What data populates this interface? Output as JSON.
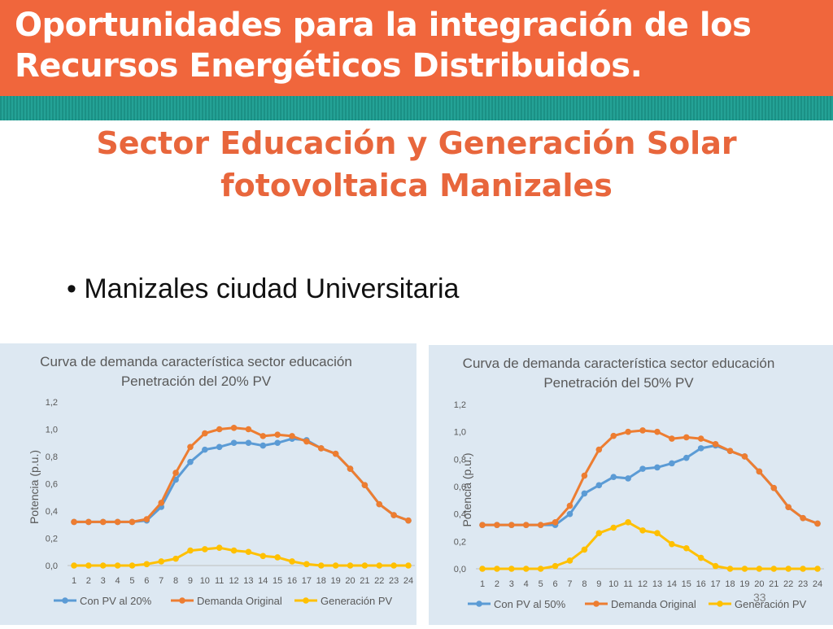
{
  "header": {
    "title": "Oportunidades para la integración de los Recursos Energéticos Distribuidos."
  },
  "subtitle": "Sector Educación y Generación Solar fotovoltaica Manizales",
  "bullet": "• Manizales ciudad Universitaria",
  "page_number": "33",
  "colors": {
    "header": "#f0663c",
    "stripe": "#1d9a8e",
    "subtitle": "#e8663c",
    "blue": "#5b9bd5",
    "orange": "#ed7d31",
    "yellow": "#ffc000"
  },
  "chart_data": [
    {
      "type": "line",
      "title": "Curva de demanda característica sector educación",
      "subtitle": "Penetración del 20% PV",
      "xlabel": "",
      "ylabel": "Potencia  (p.u.)",
      "ylim": [
        0,
        1.2
      ],
      "yticks": [
        "0,0",
        "0,2",
        "0,4",
        "0,6",
        "0,8",
        "1,0",
        "1,2"
      ],
      "categories": [
        "1",
        "2",
        "3",
        "4",
        "5",
        "6",
        "7",
        "8",
        "9",
        "10",
        "11",
        "12",
        "13",
        "14",
        "15",
        "16",
        "17",
        "18",
        "19",
        "20",
        "21",
        "22",
        "23",
        "24"
      ],
      "legend_position": "bottom",
      "series": [
        {
          "name": "Con PV al 20%",
          "color": "#5b9bd5",
          "values": [
            0.32,
            0.32,
            0.32,
            0.32,
            0.32,
            0.33,
            0.43,
            0.63,
            0.76,
            0.85,
            0.87,
            0.9,
            0.9,
            0.88,
            0.9,
            0.93,
            0.92,
            0.86,
            0.82,
            0.71,
            0.59,
            0.45,
            0.37,
            0.33
          ]
        },
        {
          "name": "Demanda Original",
          "color": "#ed7d31",
          "values": [
            0.32,
            0.32,
            0.32,
            0.32,
            0.32,
            0.34,
            0.46,
            0.68,
            0.87,
            0.97,
            1.0,
            1.01,
            1.0,
            0.95,
            0.96,
            0.95,
            0.91,
            0.86,
            0.82,
            0.71,
            0.59,
            0.45,
            0.37,
            0.33
          ]
        },
        {
          "name": "Generación PV",
          "color": "#ffc000",
          "values": [
            0,
            0,
            0,
            0,
            0,
            0.01,
            0.03,
            0.05,
            0.11,
            0.12,
            0.13,
            0.11,
            0.1,
            0.07,
            0.06,
            0.03,
            0.01,
            0,
            0,
            0,
            0,
            0,
            0,
            0
          ]
        }
      ]
    },
    {
      "type": "line",
      "title": "Curva de demanda característica sector educación",
      "subtitle": "Penetración del 50% PV",
      "xlabel": "",
      "ylabel": "Potencia  (p.u.)",
      "ylim": [
        0,
        1.2
      ],
      "yticks": [
        "0,0",
        "0,2",
        "0,4",
        "0,6",
        "0,8",
        "1,0",
        "1,2"
      ],
      "categories": [
        "1",
        "2",
        "3",
        "4",
        "5",
        "6",
        "7",
        "8",
        "9",
        "10",
        "11",
        "12",
        "13",
        "14",
        "15",
        "16",
        "17",
        "18",
        "19",
        "20",
        "21",
        "22",
        "23",
        "24"
      ],
      "legend_position": "bottom",
      "series": [
        {
          "name": "Con PV al 50%",
          "color": "#5b9bd5",
          "values": [
            0.32,
            0.32,
            0.32,
            0.32,
            0.32,
            0.32,
            0.4,
            0.55,
            0.61,
            0.67,
            0.66,
            0.73,
            0.74,
            0.77,
            0.81,
            0.88,
            0.9,
            0.86,
            0.82,
            0.71,
            0.59,
            0.45,
            0.37,
            0.33
          ]
        },
        {
          "name": "Demanda Original",
          "color": "#ed7d31",
          "values": [
            0.32,
            0.32,
            0.32,
            0.32,
            0.32,
            0.34,
            0.46,
            0.68,
            0.87,
            0.97,
            1.0,
            1.01,
            1.0,
            0.95,
            0.96,
            0.95,
            0.91,
            0.86,
            0.82,
            0.71,
            0.59,
            0.45,
            0.37,
            0.33
          ]
        },
        {
          "name": "Generación PV",
          "color": "#ffc000",
          "values": [
            0,
            0,
            0,
            0,
            0,
            0.02,
            0.06,
            0.14,
            0.26,
            0.3,
            0.34,
            0.28,
            0.26,
            0.18,
            0.15,
            0.08,
            0.02,
            0,
            0,
            0,
            0,
            0,
            0,
            0
          ]
        }
      ]
    }
  ]
}
